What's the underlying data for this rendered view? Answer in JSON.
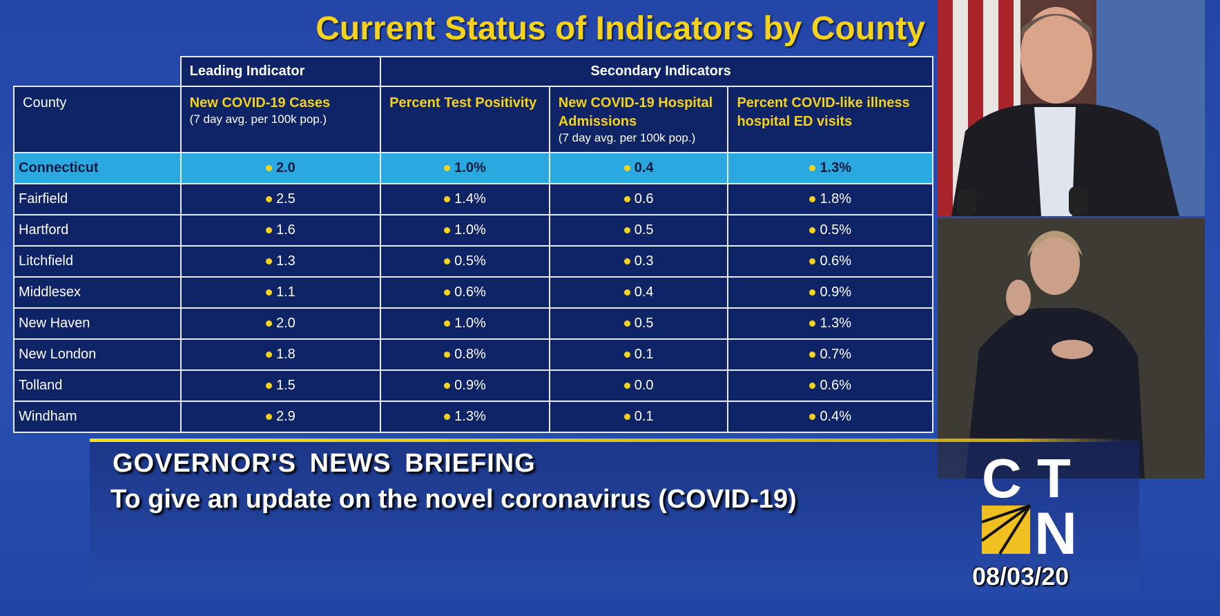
{
  "title": "Current Status of Indicators by County",
  "table": {
    "group_headers": [
      "Leading Indicator",
      "Secondary Indicators"
    ],
    "county_header": "County",
    "columns": [
      {
        "title": "New COVID-19 Cases",
        "sub": "(7 day avg. per 100k pop.)"
      },
      {
        "title": "Percent Test Positivity",
        "sub": ""
      },
      {
        "title": "New COVID-19 Hospital Admissions",
        "sub": "(7 day avg. per 100k pop.)"
      },
      {
        "title": "Percent COVID-like illness hospital ED visits",
        "sub": ""
      }
    ],
    "rows": [
      {
        "county": "Connecticut",
        "values": [
          "2.0",
          "1.0%",
          "0.4",
          "1.3%"
        ],
        "highlight": true
      },
      {
        "county": "Fairfield",
        "values": [
          "2.5",
          "1.4%",
          "0.6",
          "1.8%"
        ]
      },
      {
        "county": "Hartford",
        "values": [
          "1.6",
          "1.0%",
          "0.5",
          "0.5%"
        ]
      },
      {
        "county": "Litchfield",
        "values": [
          "1.3",
          "0.5%",
          "0.3",
          "0.6%"
        ]
      },
      {
        "county": "Middlesex",
        "values": [
          "1.1",
          "0.6%",
          "0.4",
          "0.9%"
        ]
      },
      {
        "county": "New Haven",
        "values": [
          "2.0",
          "1.0%",
          "0.5",
          "1.3%"
        ]
      },
      {
        "county": "New London",
        "values": [
          "1.8",
          "0.8%",
          "0.1",
          "0.7%"
        ]
      },
      {
        "county": "Tolland",
        "values": [
          "1.5",
          "0.9%",
          "0.0",
          "0.6%"
        ]
      },
      {
        "county": "Windham",
        "values": [
          "2.9",
          "1.3%",
          "0.1",
          "0.4%"
        ]
      }
    ],
    "status_color": "#f5d31c"
  },
  "lower_third": {
    "heading": "GOVERNOR'S NEWS BRIEFING",
    "subtitle": "To give an update on the novel coronavirus (COVID-19)"
  },
  "logo": {
    "text": "CTN",
    "date": "08/03/20"
  }
}
